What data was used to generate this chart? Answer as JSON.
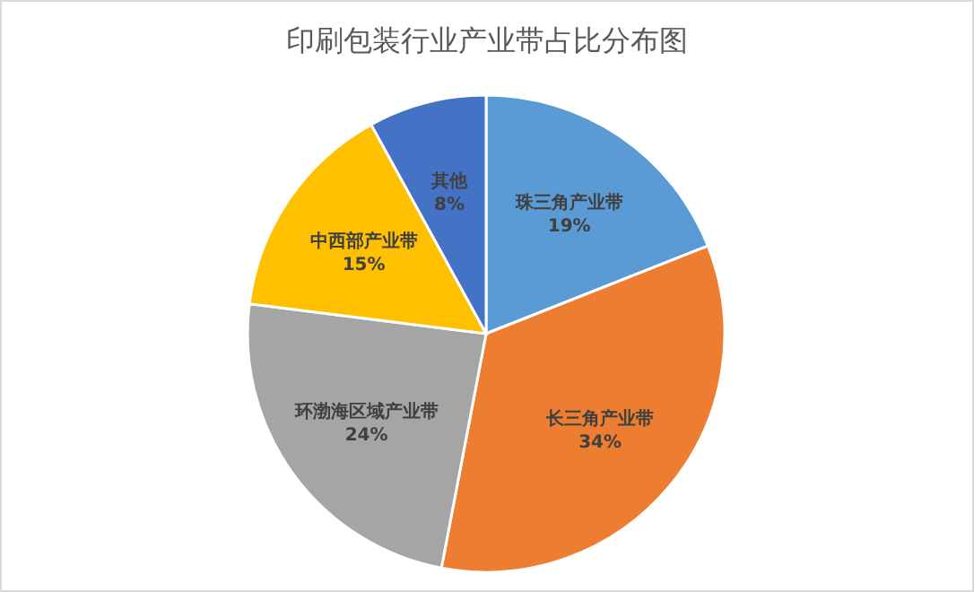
{
  "chart_data": {
    "type": "pie",
    "title": "印刷包装行业产业带占比分布图",
    "categories": [
      "珠三角产业带",
      "长三角产业带",
      "环渤海区域产业带",
      "中西部产业带",
      "其他"
    ],
    "values": [
      19,
      34,
      24,
      15,
      8
    ],
    "value_labels": [
      "19%",
      "34%",
      "24%",
      "15%",
      "8%"
    ],
    "colors": [
      "#5b9bd5",
      "#ed7d31",
      "#a5a5a5",
      "#ffc000",
      "#4472c4"
    ]
  }
}
